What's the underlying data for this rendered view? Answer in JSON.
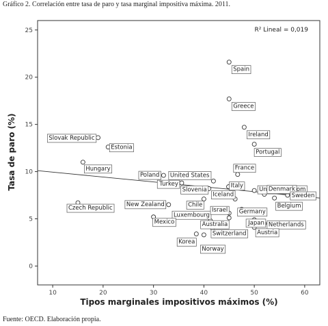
{
  "figure": {
    "title": "Gráfico 2. Correlación entre tasa de paro y tasa marginal impositiva máxima. 2011.",
    "source": "Fuente: OECD. Elaboración propia."
  },
  "chart_data": {
    "type": "scatter",
    "xlabel": "Tipos marginales impositivos máximos (%)",
    "ylabel": "Tasa de paro (%)",
    "xlim": [
      7,
      63
    ],
    "ylim": [
      -2,
      26
    ],
    "xticks": [
      "10",
      "20",
      "30",
      "40",
      "50",
      "60"
    ],
    "yticks": [
      "0",
      "5",
      "10",
      "15",
      "20",
      "25"
    ],
    "r2_label": "R² Lineal = 0,019",
    "fit_line": {
      "x": [
        7,
        63
      ],
      "y": [
        10.1,
        7.2
      ]
    },
    "points": [
      {
        "label": "Spain",
        "x": 45.0,
        "y": 21.6
      },
      {
        "label": "Greece",
        "x": 45.0,
        "y": 17.7
      },
      {
        "label": "Ireland",
        "x": 48.0,
        "y": 14.7
      },
      {
        "label": "Portugal",
        "x": 50.0,
        "y": 12.9
      },
      {
        "label": "Slovak Republic",
        "x": 19.0,
        "y": 13.6
      },
      {
        "label": "Estonia",
        "x": 21.0,
        "y": 12.6
      },
      {
        "label": "Hungary",
        "x": 16.0,
        "y": 11.0
      },
      {
        "label": "Poland",
        "x": 32.0,
        "y": 9.6
      },
      {
        "label": "France",
        "x": 46.7,
        "y": 9.7
      },
      {
        "label": "United States",
        "x": 41.9,
        "y": 9.0
      },
      {
        "label": "Italy",
        "x": 44.9,
        "y": 8.4
      },
      {
        "label": "United Kingdom",
        "x": 50.0,
        "y": 8.0
      },
      {
        "label": "Turkey",
        "x": 35.6,
        "y": 8.8
      },
      {
        "label": "Slovenia",
        "x": 41.0,
        "y": 8.2
      },
      {
        "label": "Denmark",
        "x": 52.0,
        "y": 7.6
      },
      {
        "label": "Sweden",
        "x": 56.6,
        "y": 7.5
      },
      {
        "label": "Belgium",
        "x": 54.0,
        "y": 7.2
      },
      {
        "label": "Germany",
        "x": 47.5,
        "y": 6.0
      },
      {
        "label": "Chile",
        "x": 40.0,
        "y": 7.1
      },
      {
        "label": "Iceland",
        "x": 46.2,
        "y": 7.1
      },
      {
        "label": "New Zealand",
        "x": 33.0,
        "y": 6.5
      },
      {
        "label": "Czech Republic",
        "x": 15.0,
        "y": 6.7
      },
      {
        "label": "Luxembourg",
        "x": 41.3,
        "y": 4.8
      },
      {
        "label": "Israel",
        "x": 45.0,
        "y": 5.6
      },
      {
        "label": "Japan",
        "x": 50.0,
        "y": 4.9
      },
      {
        "label": "Netherlands",
        "x": 52.0,
        "y": 4.5
      },
      {
        "label": "Australia",
        "x": 45.0,
        "y": 5.1
      },
      {
        "label": "Mexico",
        "x": 30.0,
        "y": 5.2
      },
      {
        "label": "Austria",
        "x": 50.0,
        "y": 4.1
      },
      {
        "label": "Korea",
        "x": 38.5,
        "y": 3.4
      },
      {
        "label": "Switzerland",
        "x": 41.7,
        "y": 4.0
      },
      {
        "label": "Norway",
        "x": 40.0,
        "y": 3.3
      }
    ]
  }
}
